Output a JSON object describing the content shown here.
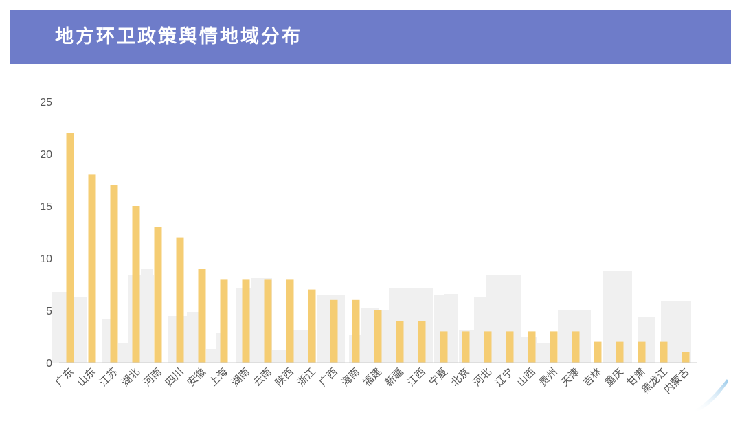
{
  "header": {
    "title": "地方环卫政策舆情地域分布"
  },
  "chart_data": {
    "type": "bar",
    "title": "地方环卫政策舆情地域分布",
    "xlabel": "",
    "ylabel": "",
    "ylim": [
      0,
      25
    ],
    "yticks": [
      0,
      5,
      10,
      15,
      20,
      25
    ],
    "grid": false,
    "categories": [
      "广东",
      "山东",
      "江苏",
      "湖北",
      "河南",
      "四川",
      "安徽",
      "上海",
      "湖南",
      "云南",
      "陕西",
      "浙江",
      "广西",
      "海南",
      "福建",
      "新疆",
      "江西",
      "宁夏",
      "北京",
      "河北",
      "辽宁",
      "山西",
      "贵州",
      "天津",
      "吉林",
      "重庆",
      "甘肃",
      "黑龙江",
      "内蒙古"
    ],
    "values": [
      22,
      18,
      17,
      15,
      13,
      12,
      9,
      8,
      8,
      8,
      8,
      7,
      6,
      6,
      5,
      4,
      4,
      3,
      3,
      3,
      3,
      3,
      3,
      3,
      2,
      2,
      2,
      2,
      1
    ],
    "colors": {
      "bar": "#f5cd73",
      "axis": "#cccccc",
      "skyline": "#f0f0f0"
    }
  }
}
